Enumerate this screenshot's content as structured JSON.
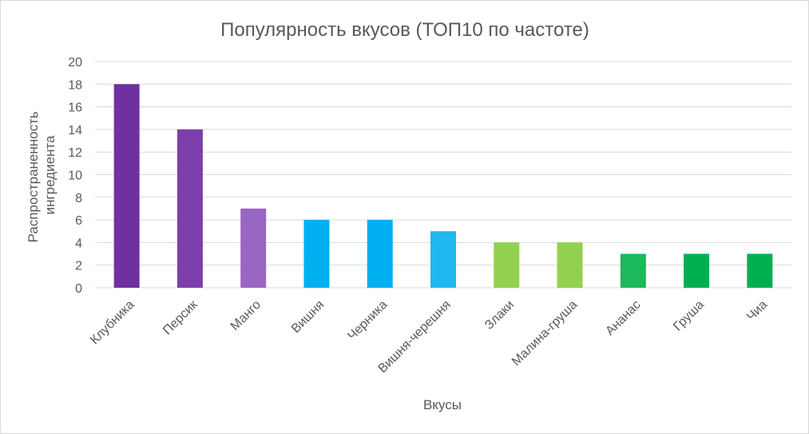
{
  "chart_data": {
    "type": "bar",
    "title": "Популярность вкусов (ТОП10 по частоте)",
    "xlabel": "Вкусы",
    "ylabel_line1": "Распространенность",
    "ylabel_line2": "ингредиента",
    "ylim": [
      0,
      20
    ],
    "yticks": [
      0,
      2,
      4,
      6,
      8,
      10,
      12,
      14,
      16,
      18,
      20
    ],
    "grid": true,
    "legend": "none",
    "categories": [
      "Клубника",
      "Персик",
      "Манго",
      "Вишня",
      "Черника",
      "Вишня-черешня",
      "Злаки",
      "Малина-груша",
      "Ананас",
      "Груша",
      "Чиа"
    ],
    "values": [
      18,
      14,
      7,
      6,
      6,
      5,
      4,
      4,
      3,
      3,
      3
    ],
    "colors": [
      "#7030a0",
      "#7c3eaa",
      "#9966c2",
      "#00b0f0",
      "#00b0f0",
      "#1fb8ef",
      "#92d050",
      "#92d050",
      "#1cb85c",
      "#00b050",
      "#00b050"
    ]
  }
}
